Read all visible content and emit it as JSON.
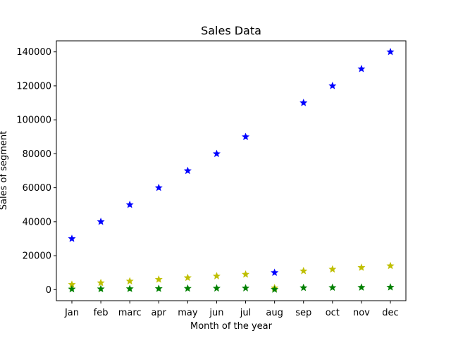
{
  "chart_data": {
    "type": "scatter",
    "title": "Sales Data",
    "xlabel": "Month of the year",
    "ylabel": "Sales of segment",
    "categories": [
      "Jan",
      "feb",
      "marc",
      "apr",
      "may",
      "jun",
      "jul",
      "aug",
      "sep",
      "oct",
      "nov",
      "dec"
    ],
    "ylim": [
      -6500,
      146500
    ],
    "yticks": [
      0,
      20000,
      40000,
      60000,
      80000,
      100000,
      120000,
      140000
    ],
    "marker": "star",
    "grid": false,
    "series": [
      {
        "color": "#0000ff",
        "values": [
          30000,
          40000,
          50000,
          60000,
          70000,
          80000,
          90000,
          10000,
          110000,
          120000,
          130000,
          140000
        ]
      },
      {
        "color": "#bfbf00",
        "values": [
          3000,
          4000,
          5000,
          6000,
          7000,
          8000,
          9000,
          1000,
          11000,
          12000,
          13000,
          14000
        ]
      },
      {
        "color": "#008000",
        "values": [
          300,
          400,
          500,
          600,
          700,
          800,
          900,
          100,
          1100,
          1200,
          1300,
          1400
        ]
      }
    ]
  }
}
